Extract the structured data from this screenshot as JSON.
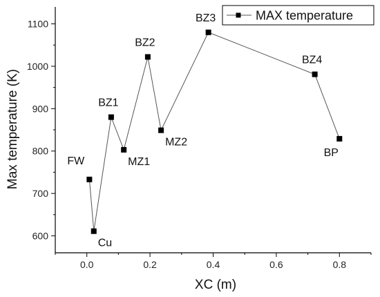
{
  "chart_data": {
    "type": "line",
    "xlabel": "XC (m)",
    "ylabel": "Max temperature (K)",
    "xlim": [
      -0.1,
      0.9
    ],
    "ylim": [
      560,
      1140
    ],
    "xticks": [
      0.0,
      0.2,
      0.4,
      0.6,
      0.8
    ],
    "xtick_labels": [
      "0.0",
      "0.2",
      "0.4",
      "0.6",
      "0.8"
    ],
    "yticks": [
      600,
      700,
      800,
      900,
      1000,
      1100
    ],
    "ytick_labels": [
      "600",
      "700",
      "800",
      "900",
      "1000",
      "1100"
    ],
    "grid": false,
    "legend_position": "top-right",
    "series": [
      {
        "name": "MAX temperature",
        "color": "#000000",
        "marker": "square",
        "points": [
          {
            "x": 0.008,
            "y": 733,
            "label": "FW",
            "label_pos": "upper-left"
          },
          {
            "x": 0.022,
            "y": 611,
            "label": "Cu",
            "label_pos": "lower-right"
          },
          {
            "x": 0.077,
            "y": 880,
            "label": "BZ1",
            "label_pos": "above"
          },
          {
            "x": 0.117,
            "y": 803,
            "label": "MZ1",
            "label_pos": "lower-right"
          },
          {
            "x": 0.193,
            "y": 1022,
            "label": "BZ2",
            "label_pos": "above"
          },
          {
            "x": 0.235,
            "y": 849,
            "label": "MZ2",
            "label_pos": "lower-right"
          },
          {
            "x": 0.385,
            "y": 1080,
            "label": "BZ3",
            "label_pos": "above"
          },
          {
            "x": 0.722,
            "y": 981,
            "label": "BZ4",
            "label_pos": "above"
          },
          {
            "x": 0.8,
            "y": 829,
            "label": "BP",
            "label_pos": "below"
          }
        ]
      }
    ]
  }
}
